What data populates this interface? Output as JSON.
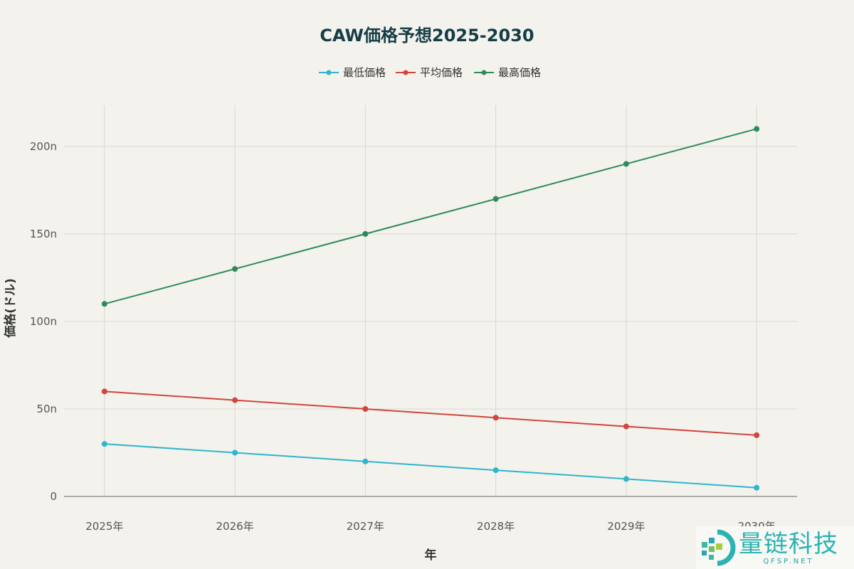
{
  "chart_data": {
    "type": "line",
    "title": "CAW価格予想2025-2030",
    "xlabel": "年",
    "ylabel": "価格(ドル)",
    "x": [
      2025,
      2026,
      2027,
      2028,
      2029,
      2030
    ],
    "x_tick_labels": [
      "2025年",
      "2026年",
      "2027年",
      "2028年",
      "2029年",
      "2030年"
    ],
    "y_tick_labels": [
      "0",
      "50n",
      "100n",
      "150n",
      "200n"
    ],
    "y_ticks": [
      0,
      50,
      100,
      150,
      200
    ],
    "y_unit": "n",
    "xlim": [
      2024.69,
      2030.31
    ],
    "ylim": [
      0,
      223.5
    ],
    "grid": true,
    "legend_position": "top-center",
    "series": [
      {
        "name": "最低価格",
        "color": "#2fb5cc",
        "values": [
          30,
          25,
          20,
          15,
          10,
          5
        ]
      },
      {
        "name": "平均価格",
        "color": "#d1453d",
        "values": [
          60,
          55,
          50,
          45,
          40,
          35
        ]
      },
      {
        "name": "最高価格",
        "color": "#2e8b57",
        "values": [
          110,
          130,
          150,
          170,
          190,
          210
        ]
      }
    ]
  },
  "watermark": {
    "name": "量链科技",
    "domain": "QFSP.NET"
  }
}
